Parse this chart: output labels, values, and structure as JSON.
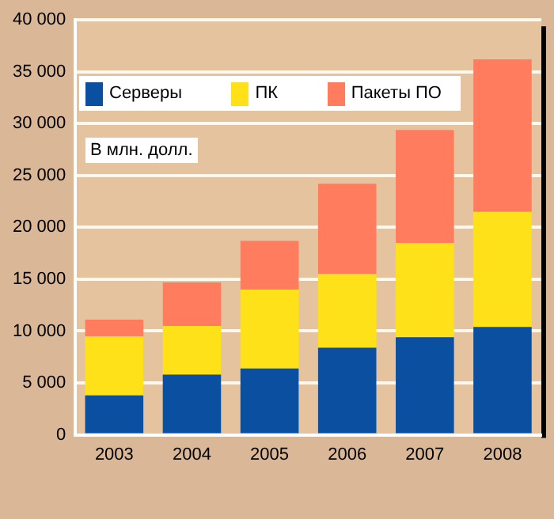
{
  "chart_data": {
    "type": "bar",
    "stacked": true,
    "categories": [
      "2003",
      "2004",
      "2005",
      "2006",
      "2007",
      "2008"
    ],
    "series": [
      {
        "name": "Серверы",
        "color": "#0b50a0",
        "values": [
          3800,
          5800,
          6400,
          8400,
          9400,
          10400
        ]
      },
      {
        "name": "ПК",
        "color": "#ffe119",
        "values": [
          5700,
          4700,
          7600,
          7100,
          9100,
          11100
        ]
      },
      {
        "name": "Пакеты ПО",
        "color": "#ff7c5e",
        "values": [
          1600,
          4200,
          4700,
          8700,
          10900,
          14700
        ]
      }
    ],
    "ylim": [
      0,
      40000
    ],
    "yticks": [
      0,
      {
        "value": 5000,
        "label": "5 000"
      },
      {
        "value": 10000,
        "label": "10 000"
      },
      {
        "value": 15000,
        "label": "15 000"
      },
      {
        "value": 20000,
        "label": "20 000"
      },
      {
        "value": 25000,
        "label": "25 000"
      },
      {
        "value": 30000,
        "label": "30 000"
      },
      {
        "value": 35000,
        "label": "35 000"
      },
      {
        "value": 40000,
        "label": "40 000"
      }
    ],
    "grid": "y",
    "legend": "top",
    "annotations": [
      "В млн. долл."
    ]
  }
}
